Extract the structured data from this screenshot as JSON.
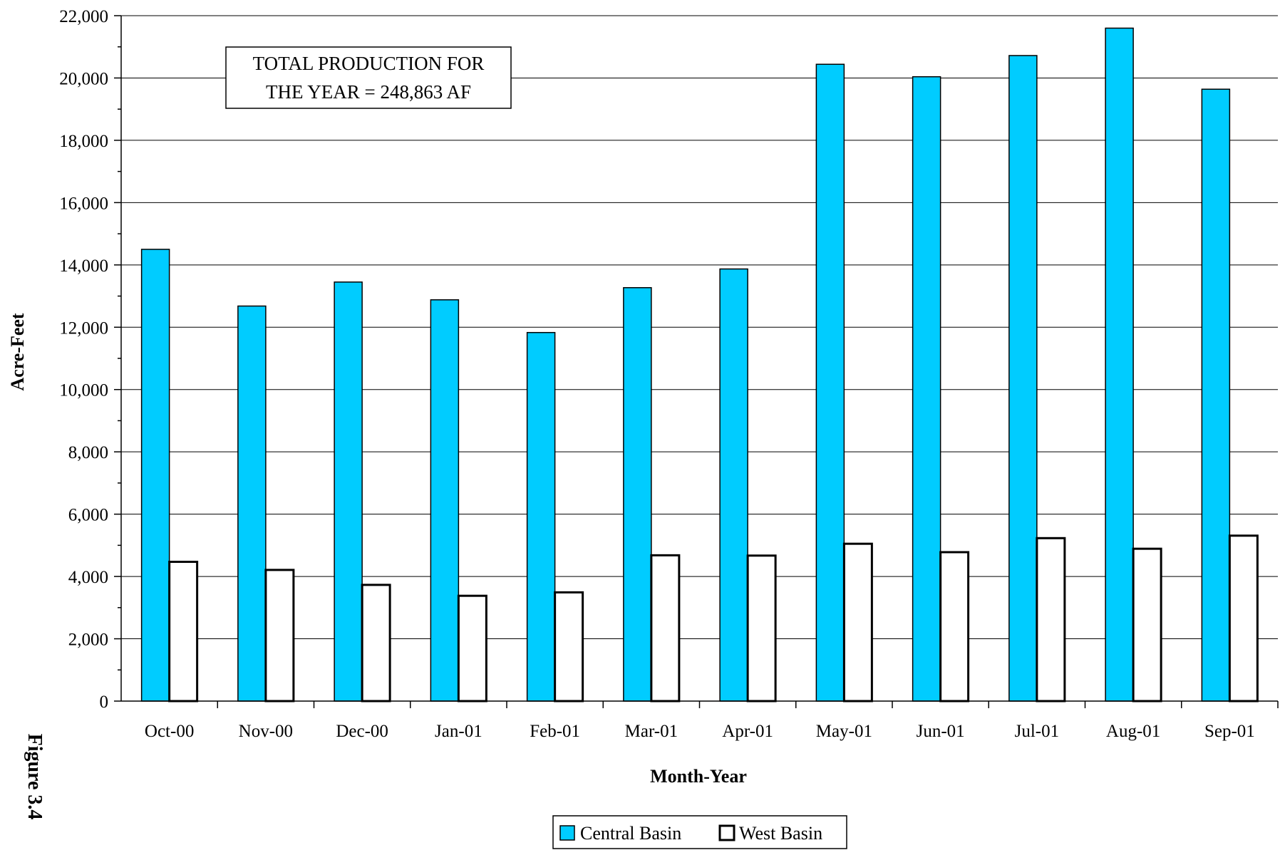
{
  "figure_label": "Figure 3.4",
  "annotation": {
    "line1": "TOTAL PRODUCTION FOR",
    "line2": "THE YEAR = 248,863 AF"
  },
  "colors": {
    "central": "#00CCFF",
    "west": "#FFFFFF",
    "grid": "#000000"
  },
  "chart_data": {
    "type": "bar",
    "title": "",
    "xlabel": "Month-Year",
    "ylabel": "Acre-Feet",
    "ylim": [
      0,
      22000
    ],
    "yticks": [
      "0",
      "2,000",
      "4,000",
      "6,000",
      "8,000",
      "10,000",
      "12,000",
      "14,000",
      "16,000",
      "18,000",
      "20,000",
      "22,000"
    ],
    "grid": true,
    "legend_position": "bottom-center",
    "categories": [
      "Oct-00",
      "Nov-00",
      "Dec-00",
      "Jan-01",
      "Feb-01",
      "Mar-01",
      "Apr-01",
      "May-01",
      "Jun-01",
      "Jul-01",
      "Aug-01",
      "Sep-01"
    ],
    "series": [
      {
        "name": "Central Basin",
        "values": [
          14500,
          12680,
          13450,
          12880,
          11830,
          13270,
          13870,
          20440,
          20040,
          20720,
          21600,
          19640
        ]
      },
      {
        "name": "West Basin",
        "values": [
          4470,
          4210,
          3730,
          3380,
          3490,
          4680,
          4670,
          5050,
          4780,
          5230,
          4890,
          5310
        ]
      }
    ]
  }
}
